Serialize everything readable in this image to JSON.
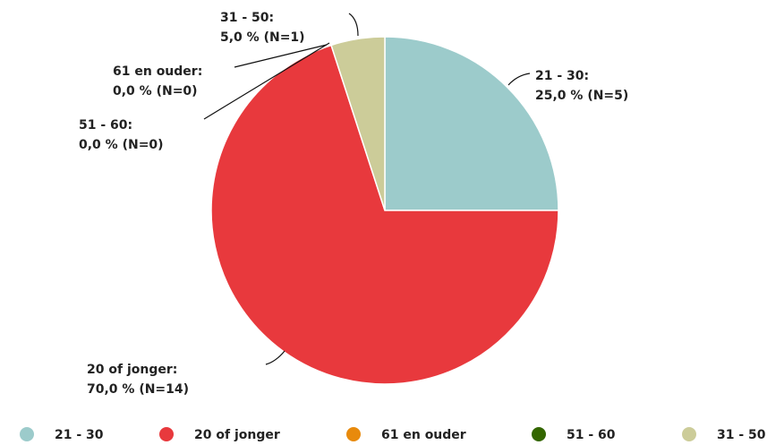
{
  "chart_data": {
    "type": "pie",
    "categories": [
      "21 - 30",
      "20 of jonger",
      "61 en ouder",
      "51 - 60",
      "31 - 50"
    ],
    "values": [
      25,
      70,
      0,
      0,
      5
    ],
    "slice_labels": [
      "21 - 30:",
      "20 of jonger:",
      "61 en ouder:",
      "51 - 60:",
      "31 - 50:"
    ],
    "value_labels": [
      "25,0 % (N=5)",
      "70,0 % (N=14)",
      "0,0 % (N=0)",
      "0,0 % (N=0)",
      "5,0 % (N=1)"
    ],
    "colors": [
      "#9ccbcb",
      "#e8393d",
      "#e88a0c",
      "#336600",
      "#cccc99"
    ],
    "legend": "bottom"
  }
}
